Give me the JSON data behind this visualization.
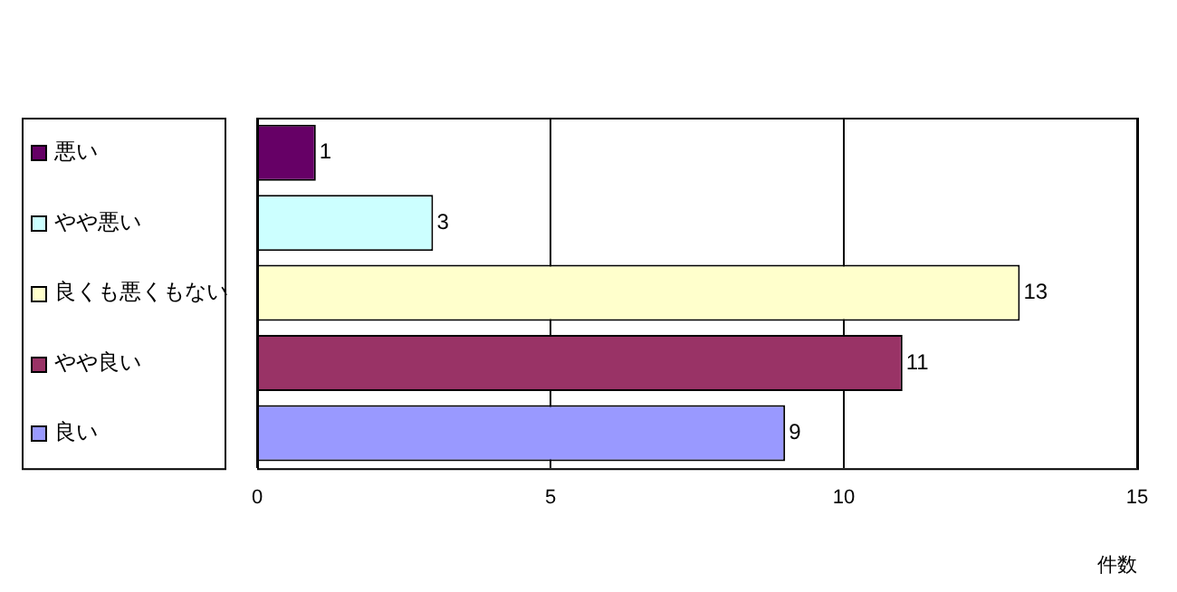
{
  "chart_data": {
    "type": "bar",
    "orientation": "horizontal",
    "categories": [
      "悪い",
      "やや悪い",
      "良くも悪くもない",
      "やや良い",
      "良い"
    ],
    "values": [
      1,
      3,
      13,
      11,
      9
    ],
    "colors": [
      "#660066",
      "#ccffff",
      "#ffffcc",
      "#993366",
      "#9999ff"
    ],
    "xlabel": "件数",
    "xlim": [
      0,
      15
    ],
    "xticks": [
      0,
      5,
      10,
      15
    ],
    "grid": "x",
    "data_labels": true
  }
}
